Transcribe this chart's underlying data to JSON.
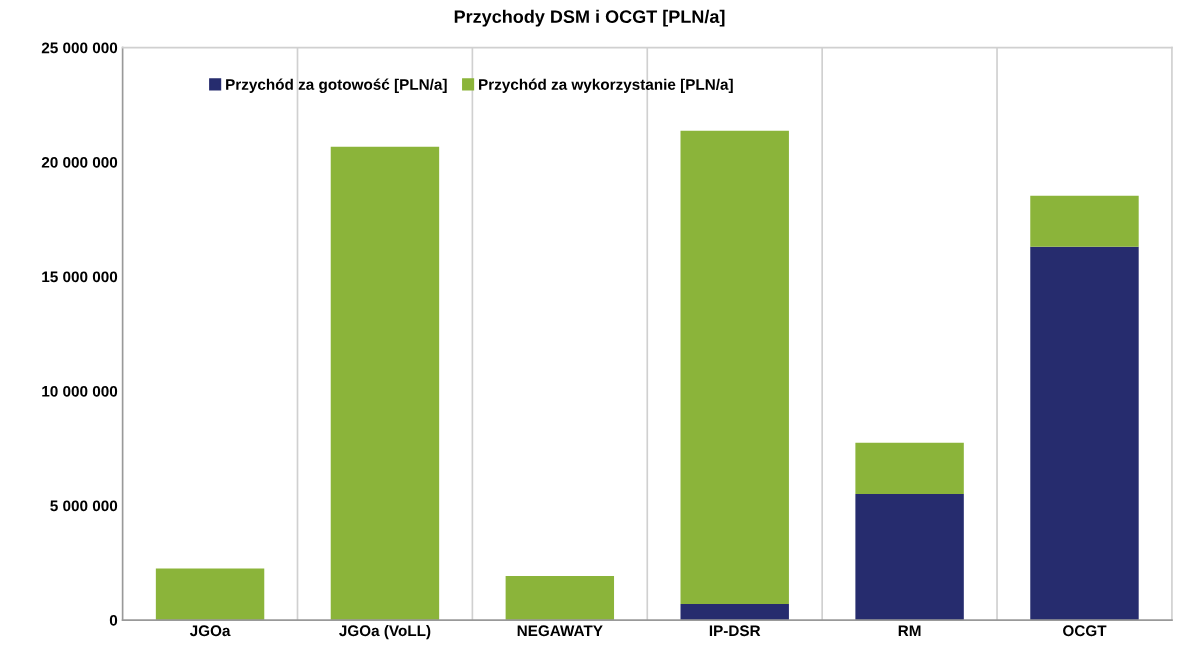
{
  "chart_data": {
    "type": "bar",
    "title": "Przychody DSM i OCGT [PLN/a]",
    "categories": [
      "JGOa",
      "JGOa (VoLL)",
      "NEGAWATY",
      "IP-DSR",
      "RM",
      "OCGT"
    ],
    "stacked": true,
    "series": [
      {
        "name": "Przychód za gotowość [PLN/a]",
        "color": "#262c6e",
        "values": [
          0,
          0,
          0,
          700000,
          5500000,
          16300000
        ]
      },
      {
        "name": "Przychód za wykorzystanie [PLN/a]",
        "color": "#8bb43a",
        "values": [
          2250000,
          20670000,
          1920000,
          20670000,
          2240000,
          2230000
        ]
      }
    ],
    "ylim": [
      0,
      25000000
    ],
    "yticks": [
      {
        "value": 0,
        "label": "0"
      },
      {
        "value": 5000000,
        "label": "5 000 000"
      },
      {
        "value": 10000000,
        "label": "10 000 000"
      },
      {
        "value": 15000000,
        "label": "15 000 000"
      },
      {
        "value": 20000000,
        "label": "20 000 000"
      },
      {
        "value": 25000000,
        "label": "25 000 000"
      }
    ],
    "grid": "x",
    "legend": "top left"
  }
}
